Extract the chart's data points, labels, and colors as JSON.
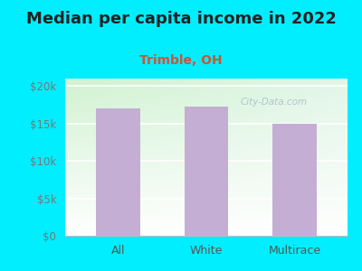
{
  "title": "Median per capita income in 2022",
  "subtitle": "Trimble, OH",
  "categories": [
    "All",
    "White",
    "Multirace"
  ],
  "values": [
    17000,
    17200,
    15000
  ],
  "bar_color": "#c4aed4",
  "title_fontsize": 13,
  "title_color": "#222222",
  "subtitle_fontsize": 10,
  "subtitle_color": "#cc5533",
  "tick_label_color": "#777777",
  "xtick_label_color": "#555555",
  "background_color": "#00eeff",
  "plot_bg_color_topleft": "#d8f0d8",
  "plot_bg_color_topright": "#f0f8ff",
  "plot_bg_color_bottomleft": "#e8f8e8",
  "plot_bg_color_bottomright": "#ffffff",
  "ylim": [
    0,
    21000
  ],
  "yticks": [
    0,
    5000,
    10000,
    15000,
    20000
  ],
  "ytick_labels": [
    "$0",
    "$5k",
    "$10k",
    "$15k",
    "$20k"
  ],
  "watermark": "City-Data.com",
  "watermark_color": "#aabbcc",
  "grid_color": "#dddddd"
}
